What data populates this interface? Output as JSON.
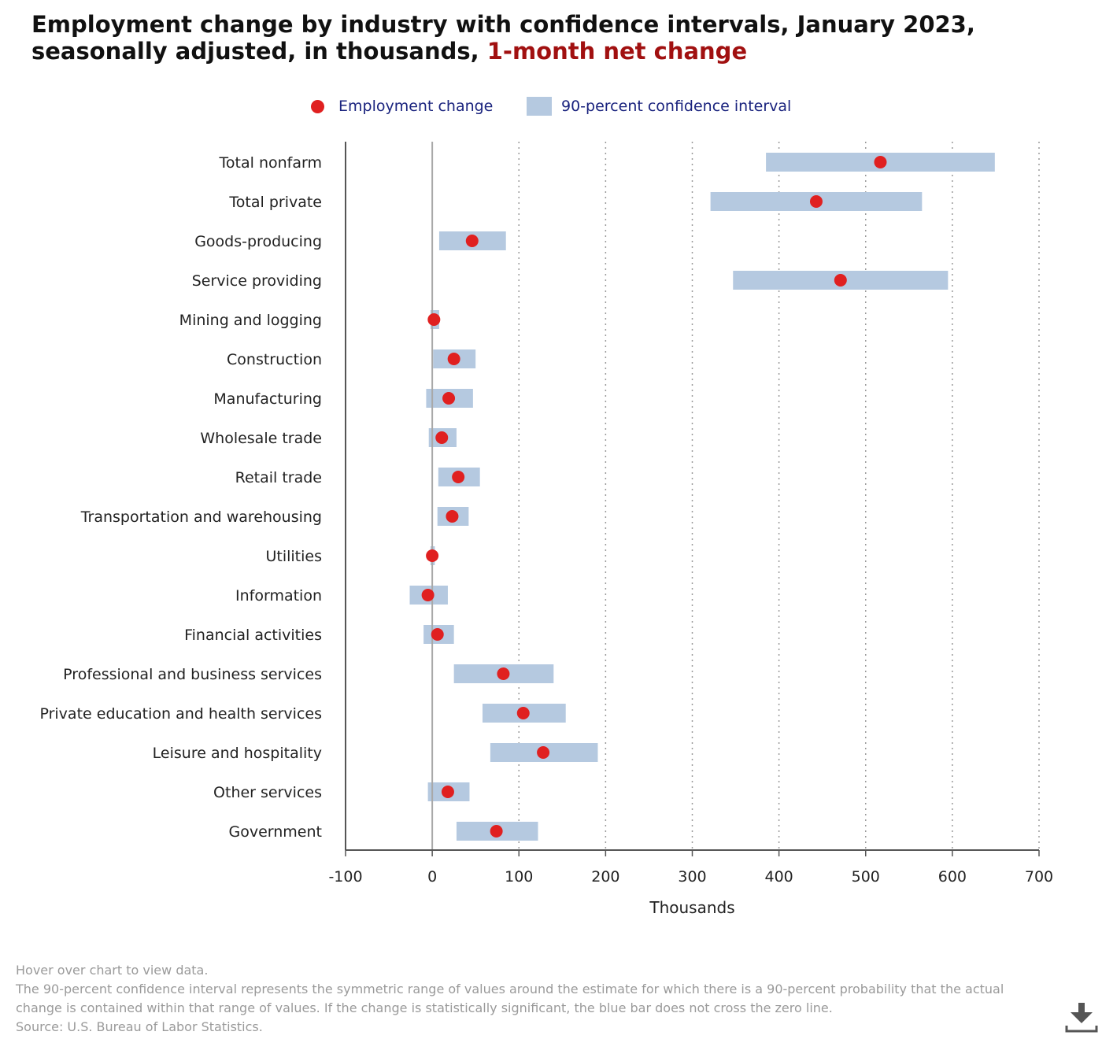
{
  "title": {
    "main": "Employment change by industry with confidence intervals, January 2023, seasonally adjusted, in thousands,",
    "highlight": "1-month net change"
  },
  "legend": {
    "point_label": "Employment change",
    "interval_label": "90-percent confidence interval"
  },
  "notes": {
    "hover": "Hover over chart to view data.",
    "description": "The 90-percent confidence interval represents the symmetric range of values around the estimate for which there is a 90-percent probability that the actual change is contained within that range of values. If the change is statistically significant, the blue bar does not cross the zero line.",
    "source": "Source: U.S. Bureau of Labor Statistics."
  },
  "colors": {
    "point": "#e02020",
    "interval": "#b5c9e0",
    "title_highlight": "#a11010",
    "legend_text": "#1a237e"
  },
  "download_icon": "download-icon",
  "chart_data": {
    "type": "scatter",
    "orientation": "horizontal",
    "xlabel": "Thousands",
    "xlim": [
      -100,
      700
    ],
    "xticks": [
      -100,
      0,
      100,
      200,
      300,
      400,
      500,
      600,
      700
    ],
    "grid": "vertical dotted",
    "categories": [
      "Total nonfarm",
      "Total private",
      "Goods-producing",
      "Service providing",
      "Mining and logging",
      "Construction",
      "Manufacturing",
      "Wholesale trade",
      "Retail trade",
      "Transportation and warehousing",
      "Utilities",
      "Information",
      "Financial activities",
      "Professional and business services",
      "Private education and health services",
      "Leisure and hospitality",
      "Other services",
      "Government"
    ],
    "series": [
      {
        "name": "Employment change",
        "values": [
          517,
          443,
          46,
          471,
          2,
          25,
          19,
          11,
          30,
          23,
          0,
          -5,
          6,
          82,
          105,
          128,
          18,
          74
        ]
      },
      {
        "name": "90-percent confidence interval",
        "low": [
          385,
          321,
          8,
          347,
          -2,
          1,
          -7,
          -4,
          7,
          6,
          -2,
          -26,
          -10,
          25,
          58,
          67,
          -5,
          28
        ],
        "high": [
          649,
          565,
          85,
          595,
          8,
          50,
          47,
          28,
          55,
          42,
          3,
          18,
          25,
          140,
          154,
          191,
          43,
          122
        ]
      }
    ]
  }
}
